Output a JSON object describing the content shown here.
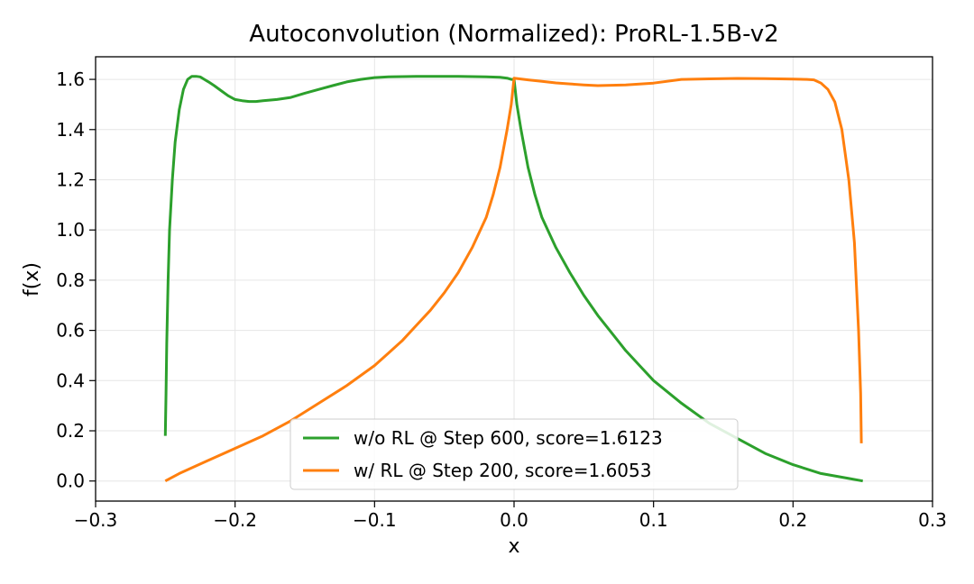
{
  "chart_data": {
    "type": "line",
    "title": "Autoconvolution (Normalized): ProRL-1.5B-v2",
    "xlabel": "x",
    "ylabel": "f(x)",
    "xlim": [
      -0.3,
      0.3
    ],
    "ylim": [
      -0.08,
      1.69
    ],
    "xticks": [
      -0.3,
      -0.2,
      -0.1,
      0.0,
      0.1,
      0.2,
      0.3
    ],
    "xtick_labels": [
      "−0.3",
      "−0.2",
      "−0.1",
      "0.0",
      "0.1",
      "0.2",
      "0.3"
    ],
    "yticks": [
      0.0,
      0.2,
      0.4,
      0.6,
      0.8,
      1.0,
      1.2,
      1.4,
      1.6
    ],
    "ytick_labels": [
      "0.0",
      "0.2",
      "0.4",
      "0.6",
      "0.8",
      "1.0",
      "1.2",
      "1.4",
      "1.6"
    ],
    "grid": true,
    "legend_position": "lower-center",
    "series": [
      {
        "name": "w/o RL @ Step 600, score=1.6123",
        "color": "#2ca02c",
        "x": [
          -0.25,
          -0.2495,
          -0.249,
          -0.248,
          -0.247,
          -0.245,
          -0.243,
          -0.24,
          -0.237,
          -0.234,
          -0.231,
          -0.228,
          -0.225,
          -0.222,
          -0.219,
          -0.215,
          -0.21,
          -0.205,
          -0.2,
          -0.195,
          -0.19,
          -0.185,
          -0.18,
          -0.17,
          -0.16,
          -0.15,
          -0.14,
          -0.13,
          -0.12,
          -0.11,
          -0.1,
          -0.09,
          -0.08,
          -0.07,
          -0.06,
          -0.05,
          -0.04,
          -0.03,
          -0.02,
          -0.01,
          -0.005,
          -0.002,
          0.0,
          0.002,
          0.005,
          0.01,
          0.015,
          0.02,
          0.03,
          0.04,
          0.05,
          0.06,
          0.07,
          0.08,
          0.09,
          0.1,
          0.12,
          0.14,
          0.16,
          0.18,
          0.2,
          0.22,
          0.24,
          0.25
        ],
        "y": [
          0.18,
          0.35,
          0.55,
          0.8,
          1.0,
          1.2,
          1.35,
          1.48,
          1.56,
          1.6,
          1.612,
          1.612,
          1.61,
          1.6,
          1.59,
          1.575,
          1.555,
          1.535,
          1.52,
          1.515,
          1.512,
          1.512,
          1.515,
          1.52,
          1.528,
          1.545,
          1.56,
          1.575,
          1.59,
          1.6,
          1.607,
          1.61,
          1.611,
          1.612,
          1.612,
          1.612,
          1.612,
          1.611,
          1.61,
          1.608,
          1.605,
          1.6,
          1.6,
          1.5,
          1.4,
          1.25,
          1.14,
          1.05,
          0.93,
          0.83,
          0.74,
          0.66,
          0.59,
          0.52,
          0.46,
          0.4,
          0.31,
          0.23,
          0.17,
          0.11,
          0.065,
          0.03,
          0.01,
          0.0
        ]
      },
      {
        "name": "w/ RL @ Step 200, score=1.6053",
        "color": "#ff7f0e",
        "x": [
          -0.25,
          -0.24,
          -0.22,
          -0.2,
          -0.18,
          -0.16,
          -0.14,
          -0.12,
          -0.1,
          -0.09,
          -0.08,
          -0.07,
          -0.06,
          -0.05,
          -0.04,
          -0.03,
          -0.02,
          -0.015,
          -0.01,
          -0.005,
          -0.002,
          0.0,
          0.01,
          0.02,
          0.03,
          0.04,
          0.05,
          0.06,
          0.08,
          0.1,
          0.12,
          0.14,
          0.16,
          0.18,
          0.2,
          0.21,
          0.215,
          0.22,
          0.225,
          0.23,
          0.235,
          0.24,
          0.244,
          0.247,
          0.2485,
          0.249
        ],
        "y": [
          0.0,
          0.03,
          0.08,
          0.13,
          0.18,
          0.24,
          0.31,
          0.38,
          0.46,
          0.51,
          0.56,
          0.62,
          0.68,
          0.75,
          0.83,
          0.93,
          1.05,
          1.14,
          1.25,
          1.4,
          1.5,
          1.605,
          1.598,
          1.592,
          1.586,
          1.582,
          1.578,
          1.575,
          1.578,
          1.585,
          1.6,
          1.602,
          1.604,
          1.603,
          1.601,
          1.6,
          1.598,
          1.585,
          1.56,
          1.51,
          1.4,
          1.2,
          0.95,
          0.6,
          0.35,
          0.15
        ]
      }
    ]
  }
}
